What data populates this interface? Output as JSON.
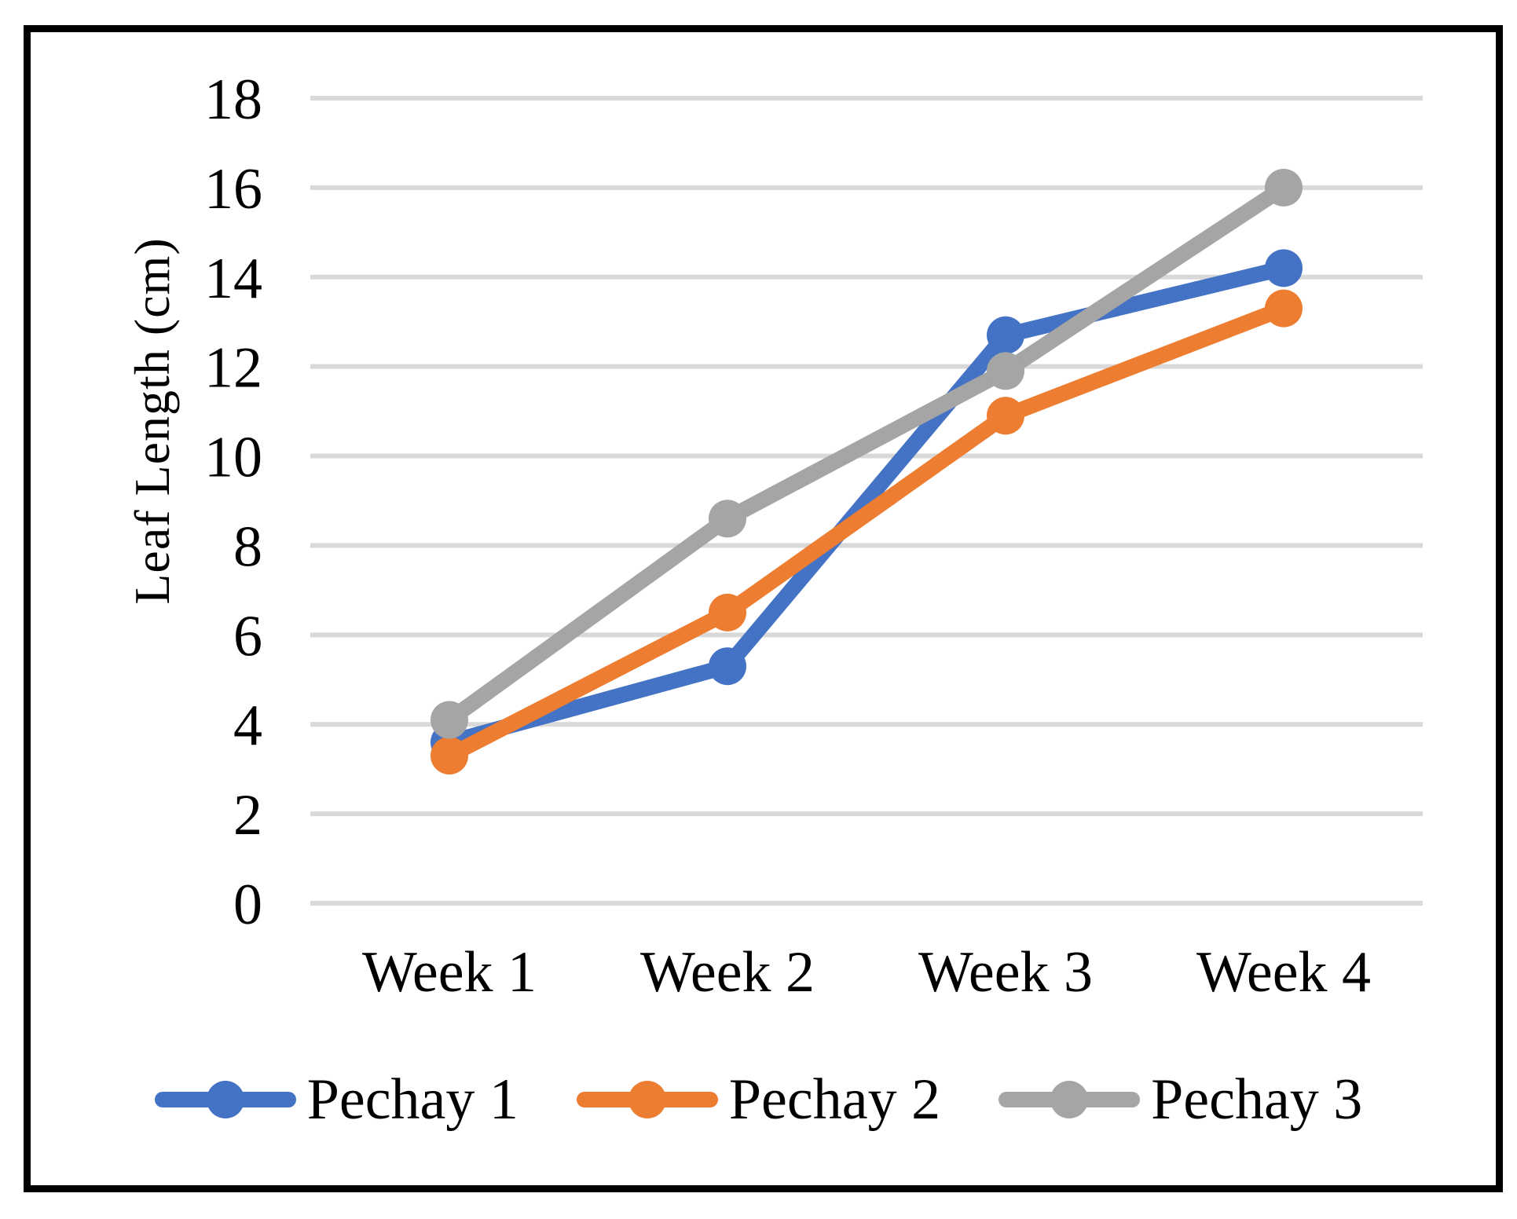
{
  "chart_data": {
    "type": "line",
    "title": "",
    "categories": [
      "Week 1",
      "Week 2",
      "Week 3",
      "Week 4"
    ],
    "series": [
      {
        "name": "Pechay 1",
        "color": "#4472C4",
        "values": [
          3.6,
          5.3,
          12.7,
          14.2
        ]
      },
      {
        "name": "Pechay 2",
        "color": "#ED7D31",
        "values": [
          3.3,
          6.5,
          10.9,
          13.3
        ]
      },
      {
        "name": "Pechay 3",
        "color": "#A5A5A5",
        "values": [
          4.1,
          8.6,
          11.9,
          16.0
        ]
      }
    ],
    "xlabel": "",
    "ylabel": "Leaf Length (cm)",
    "ylim": [
      0,
      18
    ],
    "yticks": [
      0,
      2,
      4,
      6,
      8,
      10,
      12,
      14,
      16,
      18
    ],
    "grid": true,
    "gridline_color": "#D9D9D9",
    "text_color": "#000000",
    "background_color": "#FFFFFF",
    "border_color": "#000000",
    "legend_position": "bottom",
    "marker_style": "circle"
  }
}
